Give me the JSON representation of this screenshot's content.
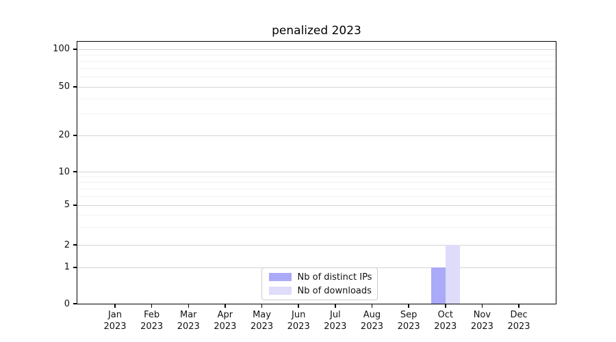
{
  "figure": {
    "title": "penalized 2023"
  },
  "chart_data": {
    "type": "bar",
    "title": "penalized 2023",
    "x_axis": {
      "categories": [
        "Jan",
        "Feb",
        "Mar",
        "Apr",
        "May",
        "Jun",
        "Jul",
        "Aug",
        "Sep",
        "Oct",
        "Nov",
        "Dec"
      ],
      "year_line": "2023"
    },
    "y_axis": {
      "scale": "symlog",
      "ticks": [
        {
          "value": 0,
          "frac": 0.0
        },
        {
          "value": 1,
          "frac": 0.1384
        },
        {
          "value": 2,
          "frac": 0.2245
        },
        {
          "value": 5,
          "frac": 0.376
        },
        {
          "value": 10,
          "frac": 0.5039
        },
        {
          "value": 20,
          "frac": 0.6423
        },
        {
          "value": 50,
          "frac": 0.8277
        },
        {
          "value": 100,
          "frac": 0.9713
        }
      ],
      "minor_values": [
        3,
        4,
        6,
        7,
        8,
        9,
        30,
        40,
        60,
        70,
        80,
        90
      ]
    },
    "series": [
      {
        "name": "Nb of distinct IPs",
        "color": "#aaaaf8",
        "values": [
          0,
          0,
          0,
          0,
          0,
          0,
          0,
          0,
          0,
          1,
          0,
          0
        ]
      },
      {
        "name": "Nb of downloads",
        "color": "#dedcf8",
        "values": [
          0,
          0,
          0,
          0,
          0,
          0,
          0,
          0,
          0,
          2,
          0,
          0
        ]
      }
    ],
    "legend": {
      "position": "lower center",
      "entries": [
        "Nb of distinct IPs",
        "Nb of downloads"
      ]
    },
    "grid": true,
    "colors": {
      "major_grid": "#d4d4d4",
      "minor_grid": "#f1f1f1",
      "axis": "#000000",
      "background": "#ffffff"
    }
  }
}
